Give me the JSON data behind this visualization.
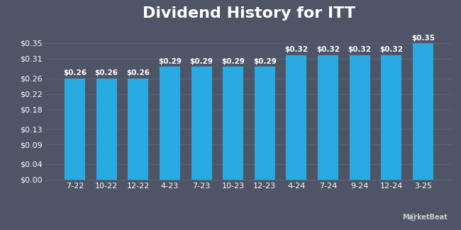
{
  "title": "Dividend History for ITT",
  "categories": [
    "7-22",
    "10-22",
    "12-22",
    "4-23",
    "7-23",
    "10-23",
    "12-23",
    "4-24",
    "7-24",
    "9-24",
    "12-24",
    "3-25"
  ],
  "values": [
    0.26,
    0.26,
    0.26,
    0.29,
    0.29,
    0.29,
    0.29,
    0.32,
    0.32,
    0.32,
    0.32,
    0.35
  ],
  "bar_color": "#29ABE2",
  "background_color": "#4d5566",
  "plot_bg_color": "#4d5566",
  "text_color": "#ffffff",
  "grid_color": "#5d6577",
  "ytick_labels": [
    "$0.00",
    "$0.04",
    "$0.09",
    "$0.13",
    "$0.18",
    "$0.22",
    "$0.26",
    "$0.31",
    "$0.35"
  ],
  "ytick_values": [
    0.0,
    0.04,
    0.09,
    0.13,
    0.18,
    0.22,
    0.26,
    0.31,
    0.35
  ],
  "ylim": [
    0,
    0.39
  ],
  "title_fontsize": 16,
  "label_fontsize": 8,
  "bar_label_fontsize": 7.5
}
